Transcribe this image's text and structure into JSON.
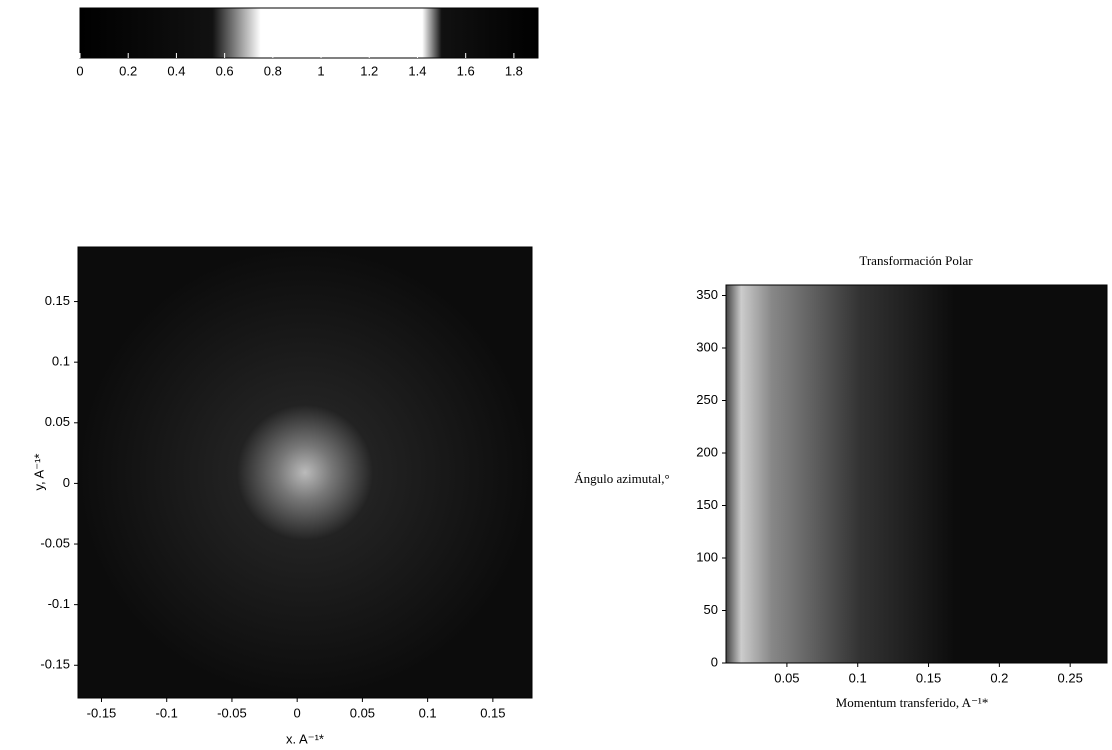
{
  "chart_data": [
    {
      "type": "colorbar",
      "xlim": [
        0,
        1.9
      ],
      "xticks": [
        0,
        0.2,
        0.4,
        0.6,
        0.8,
        1,
        1.2,
        1.4,
        1.6,
        1.8
      ],
      "colormap": [
        {
          "value": 0,
          "color": "#000000"
        },
        {
          "value": 0.55,
          "color": "#111111"
        },
        {
          "value": 0.75,
          "color": "#ffffff"
        },
        {
          "value": 1.42,
          "color": "#ffffff"
        },
        {
          "value": 1.5,
          "color": "#111111"
        },
        {
          "value": 1.9,
          "color": "#000000"
        }
      ]
    },
    {
      "type": "image",
      "xlabel": "x. A⁻¹*",
      "ylabel": "y, A⁻¹*",
      "xlim": [
        -0.168,
        0.18
      ],
      "ylim": [
        -0.177,
        0.195
      ],
      "xticks": [
        -0.15,
        -0.1,
        -0.05,
        0,
        0.05,
        0.1,
        0.15
      ],
      "yticks": [
        -0.15,
        -0.1,
        -0.05,
        0,
        0.05,
        0.1,
        0.15
      ]
    },
    {
      "type": "image",
      "title": "Transformación Polar",
      "xlabel": "Momentum transferido, A⁻¹*",
      "ylabel": "Ángulo azimutal,°",
      "xlim": [
        0.007,
        0.276
      ],
      "ylim": [
        0,
        360
      ],
      "xticks": [
        0.05,
        0.1,
        0.15,
        0.2,
        0.25
      ],
      "yticks": [
        0,
        50,
        100,
        150,
        200,
        250,
        300,
        350
      ]
    }
  ]
}
